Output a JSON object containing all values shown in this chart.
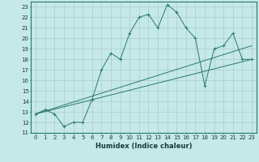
{
  "xlabel": "Humidex (Indice chaleur)",
  "bg_color": "#c5e8e8",
  "grid_color": "#aacccc",
  "line_color": "#2a7a6a",
  "xlim": [
    -0.5,
    23.5
  ],
  "ylim": [
    11,
    23.5
  ],
  "yticks": [
    11,
    12,
    13,
    14,
    15,
    16,
    17,
    18,
    19,
    20,
    21,
    22,
    23
  ],
  "xticks": [
    0,
    1,
    2,
    3,
    4,
    5,
    6,
    7,
    8,
    9,
    10,
    11,
    12,
    13,
    14,
    15,
    16,
    17,
    18,
    19,
    20,
    21,
    22,
    23
  ],
  "line1_x": [
    0,
    1,
    2,
    3,
    4,
    5,
    6,
    7,
    8,
    9,
    10,
    11,
    12,
    13,
    14,
    15,
    16,
    17,
    18,
    19,
    20,
    21,
    22,
    23
  ],
  "line1_y": [
    12.8,
    13.2,
    12.8,
    11.6,
    12.0,
    12.0,
    14.2,
    17.0,
    18.6,
    18.0,
    20.5,
    22.0,
    22.3,
    21.0,
    23.2,
    22.5,
    21.0,
    20.0,
    15.5,
    19.0,
    19.3,
    20.5,
    18.0,
    18.0
  ],
  "line2_x": [
    0,
    23
  ],
  "line2_y": [
    12.8,
    18.0
  ],
  "line3_x": [
    0,
    23
  ],
  "line3_y": [
    12.8,
    19.3
  ],
  "xlabel_fontsize": 6,
  "tick_fontsize": 5
}
